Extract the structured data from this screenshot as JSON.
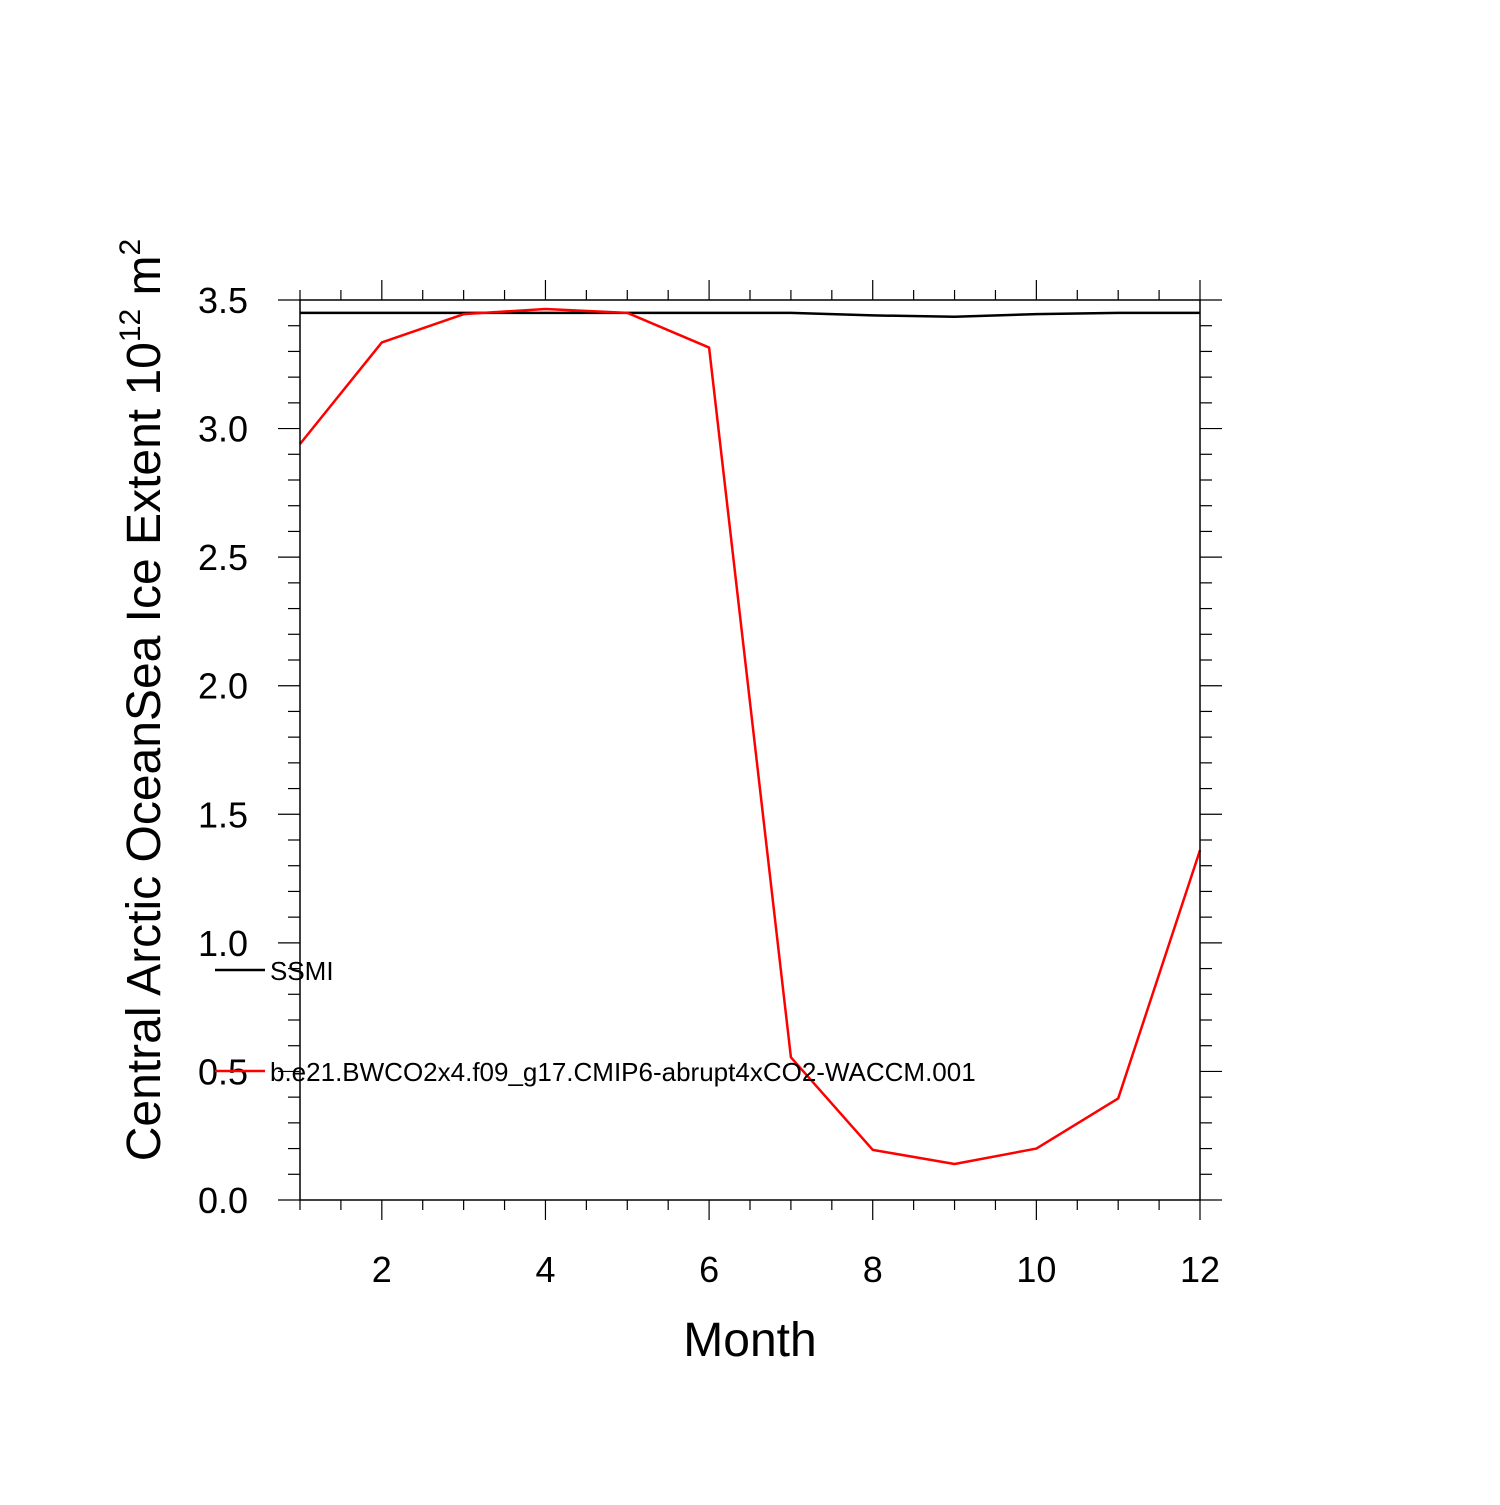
{
  "chart_data": {
    "type": "line",
    "title": "",
    "xlabel": "Month",
    "ylabel": {
      "main": "Central Arctic OceanSea Ice Extent 10",
      "sup1": "12",
      "mid": " m",
      "sup2": "2"
    },
    "xlim": [
      1,
      12
    ],
    "ylim": [
      0,
      3.5
    ],
    "x_ticks": [
      2,
      4,
      6,
      8,
      10,
      12
    ],
    "x_tick_labels": [
      "2",
      "4",
      "6",
      "8",
      "10",
      "12"
    ],
    "y_ticks": [
      0,
      0.5,
      1,
      1.5,
      2,
      2.5,
      3,
      3.5
    ],
    "y_tick_labels": [
      "0.0",
      "0.5",
      "1.0",
      "1.5",
      "2.0",
      "2.5",
      "3.0",
      "3.5"
    ],
    "grid": false,
    "legend_placement": "left-middle",
    "x": [
      1,
      2,
      3,
      4,
      5,
      6,
      7,
      8,
      9,
      10,
      11,
      12
    ],
    "series": [
      {
        "name": "SSMI",
        "color": "#000000",
        "values": [
          3.45,
          3.45,
          3.45,
          3.45,
          3.45,
          3.45,
          3.45,
          3.44,
          3.435,
          3.445,
          3.45,
          3.45
        ]
      },
      {
        "name": "b.e21.BWCO2x4.f09_g17.CMIP6-abrupt4xCO2-WACCM.001",
        "color": "#ff0000",
        "values": [
          2.94,
          3.335,
          3.445,
          3.465,
          3.45,
          3.315,
          0.555,
          0.195,
          0.14,
          0.2,
          0.395,
          1.36
        ]
      }
    ]
  }
}
